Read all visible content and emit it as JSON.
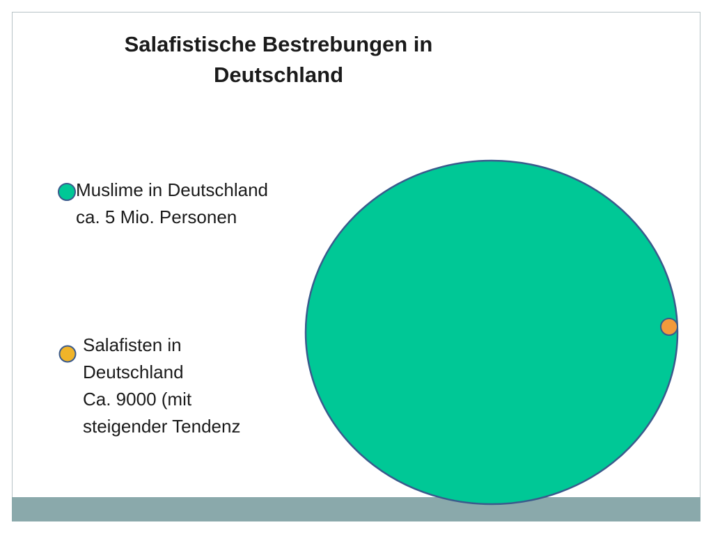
{
  "title": {
    "line1": "Salafistische Bestrebungen in",
    "line2": "Deutschland"
  },
  "legend": [
    {
      "lines": [
        "Muslime in Deutschland",
        "ca. 5 Mio. Personen"
      ],
      "color": "#00c896"
    },
    {
      "lines": [
        "Salafisten in",
        "Deutschland",
        "Ca. 9000 (mit",
        "steigender Tendenz"
      ],
      "color": "#f0b429"
    }
  ],
  "colors": {
    "large_circle_fill": "#00c896",
    "large_circle_stroke": "#3a5a8c",
    "small_circle_fill": "#f39a3c",
    "bottom_bar": "#8aa9ab",
    "frame": "#b7c3c6"
  }
}
